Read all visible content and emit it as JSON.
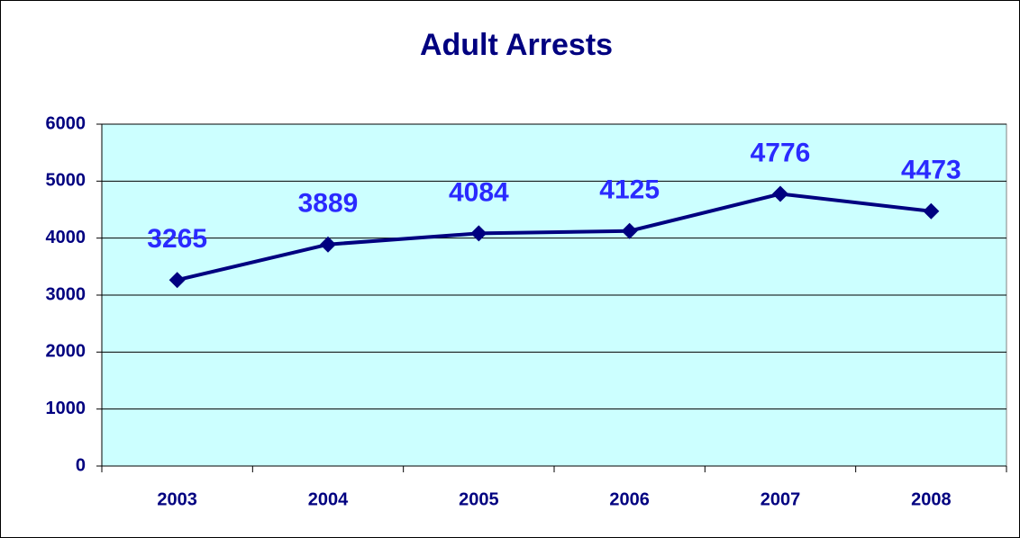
{
  "chart_data": {
    "type": "line",
    "title": "Adult Arrests",
    "categories": [
      "2003",
      "2004",
      "2005",
      "2006",
      "2007",
      "2008"
    ],
    "values": [
      3265,
      3889,
      4084,
      4125,
      4776,
      4473
    ],
    "color": "#000080",
    "label_color": "#2a2aff",
    "background": "#ccffff",
    "ylim": [
      0,
      6000
    ],
    "yticks": [
      0,
      1000,
      2000,
      3000,
      4000,
      5000,
      6000
    ],
    "grid": true
  }
}
